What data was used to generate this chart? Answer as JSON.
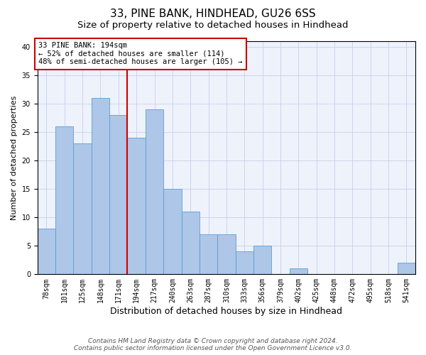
{
  "title1": "33, PINE BANK, HINDHEAD, GU26 6SS",
  "title2": "Size of property relative to detached houses in Hindhead",
  "xlabel": "Distribution of detached houses by size in Hindhead",
  "ylabel": "Number of detached properties",
  "categories": [
    "78sqm",
    "101sqm",
    "125sqm",
    "148sqm",
    "171sqm",
    "194sqm",
    "217sqm",
    "240sqm",
    "263sqm",
    "287sqm",
    "310sqm",
    "333sqm",
    "356sqm",
    "379sqm",
    "402sqm",
    "425sqm",
    "448sqm",
    "472sqm",
    "495sqm",
    "518sqm",
    "541sqm"
  ],
  "values": [
    8,
    26,
    23,
    31,
    28,
    24,
    29,
    15,
    11,
    7,
    7,
    4,
    5,
    0,
    1,
    0,
    0,
    0,
    0,
    0,
    2
  ],
  "bar_color": "#aec6e8",
  "bar_edge_color": "#5a9fd4",
  "vline_color": "#cc0000",
  "vline_x_index": 5,
  "ylim": [
    0,
    41
  ],
  "yticks": [
    0,
    5,
    10,
    15,
    20,
    25,
    30,
    35,
    40
  ],
  "annotation_text": "33 PINE BANK: 194sqm\n← 52% of detached houses are smaller (114)\n48% of semi-detached houses are larger (105) →",
  "annotation_box_color": "#ffffff",
  "annotation_box_edgecolor": "#cc0000",
  "footer1": "Contains HM Land Registry data © Crown copyright and database right 2024.",
  "footer2": "Contains public sector information licensed under the Open Government Licence v3.0.",
  "background_color": "#eef2fb",
  "grid_color": "#c8d0e8",
  "title1_fontsize": 11,
  "title2_fontsize": 9.5,
  "xlabel_fontsize": 9,
  "ylabel_fontsize": 8,
  "tick_fontsize": 7,
  "annotation_fontsize": 7.5,
  "footer_fontsize": 6.5
}
